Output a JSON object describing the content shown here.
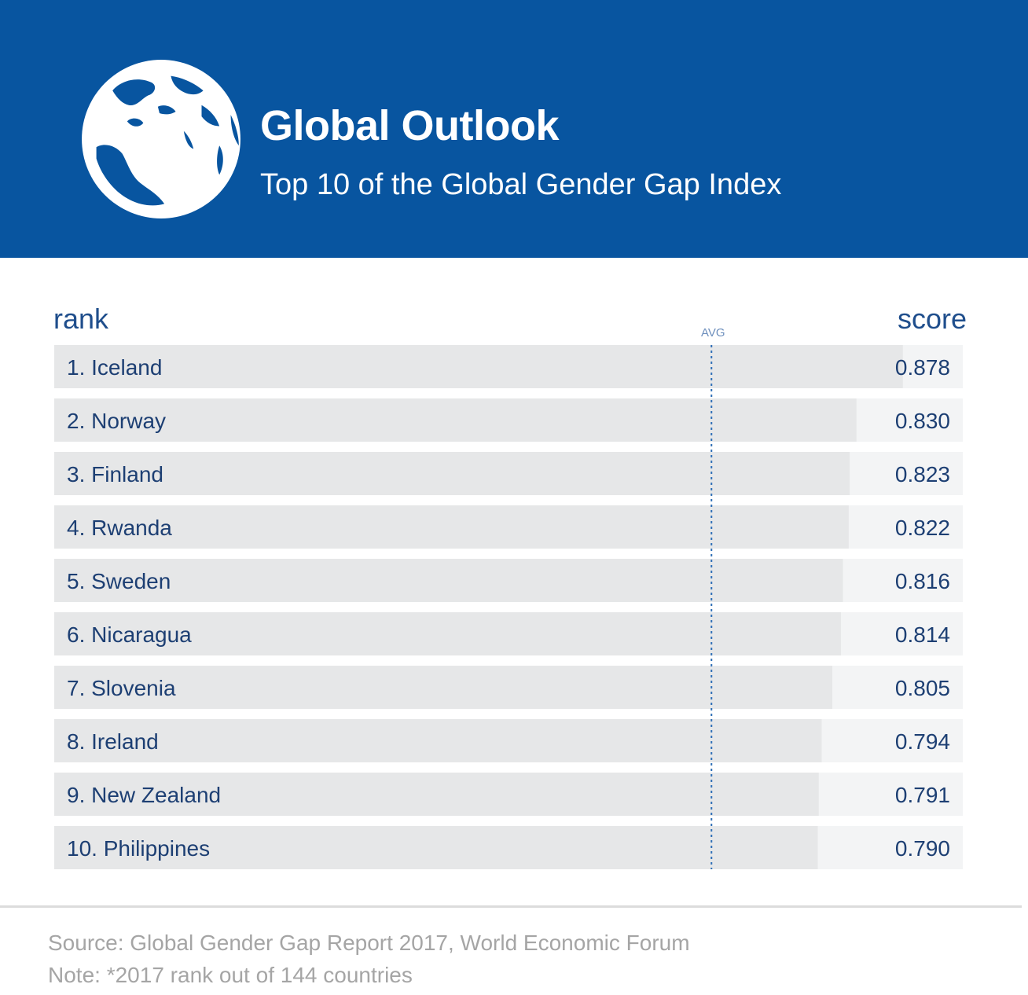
{
  "colors": {
    "header_bg": "#0855a0",
    "bar_fill": "#e6e7e8",
    "row_bg": "#f3f4f5",
    "text_primary": "#1d3f73",
    "label_blue": "#1f4e8c",
    "avg_line": "#2f6fb7",
    "avg_label": "#6d8fbd",
    "footnote": "#a5a5a5"
  },
  "header": {
    "title": "Global Outlook",
    "subtitle": "Top 10 of the Global Gender Gap Index",
    "icon": "globe-icon"
  },
  "chart_data": {
    "type": "bar",
    "orientation": "horizontal",
    "title": "Top 10 of the Global Gender Gap Index",
    "rank_header": "rank",
    "score_header": "score",
    "avg_label": "AVG",
    "avg_value": 0.68,
    "xlim": [
      0,
      0.94
    ],
    "categories": [
      "1. Iceland",
      "2. Norway",
      "3. Finland",
      "4. Rwanda",
      "5. Sweden",
      "6. Nicaragua",
      "7. Slovenia",
      "8. Ireland",
      "9. New Zealand",
      "10. Philippines"
    ],
    "values": [
      0.878,
      0.83,
      0.823,
      0.822,
      0.816,
      0.814,
      0.805,
      0.794,
      0.791,
      0.79
    ],
    "value_labels": [
      "0.878",
      "0.830",
      "0.823",
      "0.822",
      "0.816",
      "0.814",
      "0.805",
      "0.794",
      "0.791",
      "0.790"
    ]
  },
  "footer": {
    "source": "Source: Global Gender Gap Report 2017, World Economic Forum",
    "note": "Note: *2017 rank out of 144 countries"
  }
}
